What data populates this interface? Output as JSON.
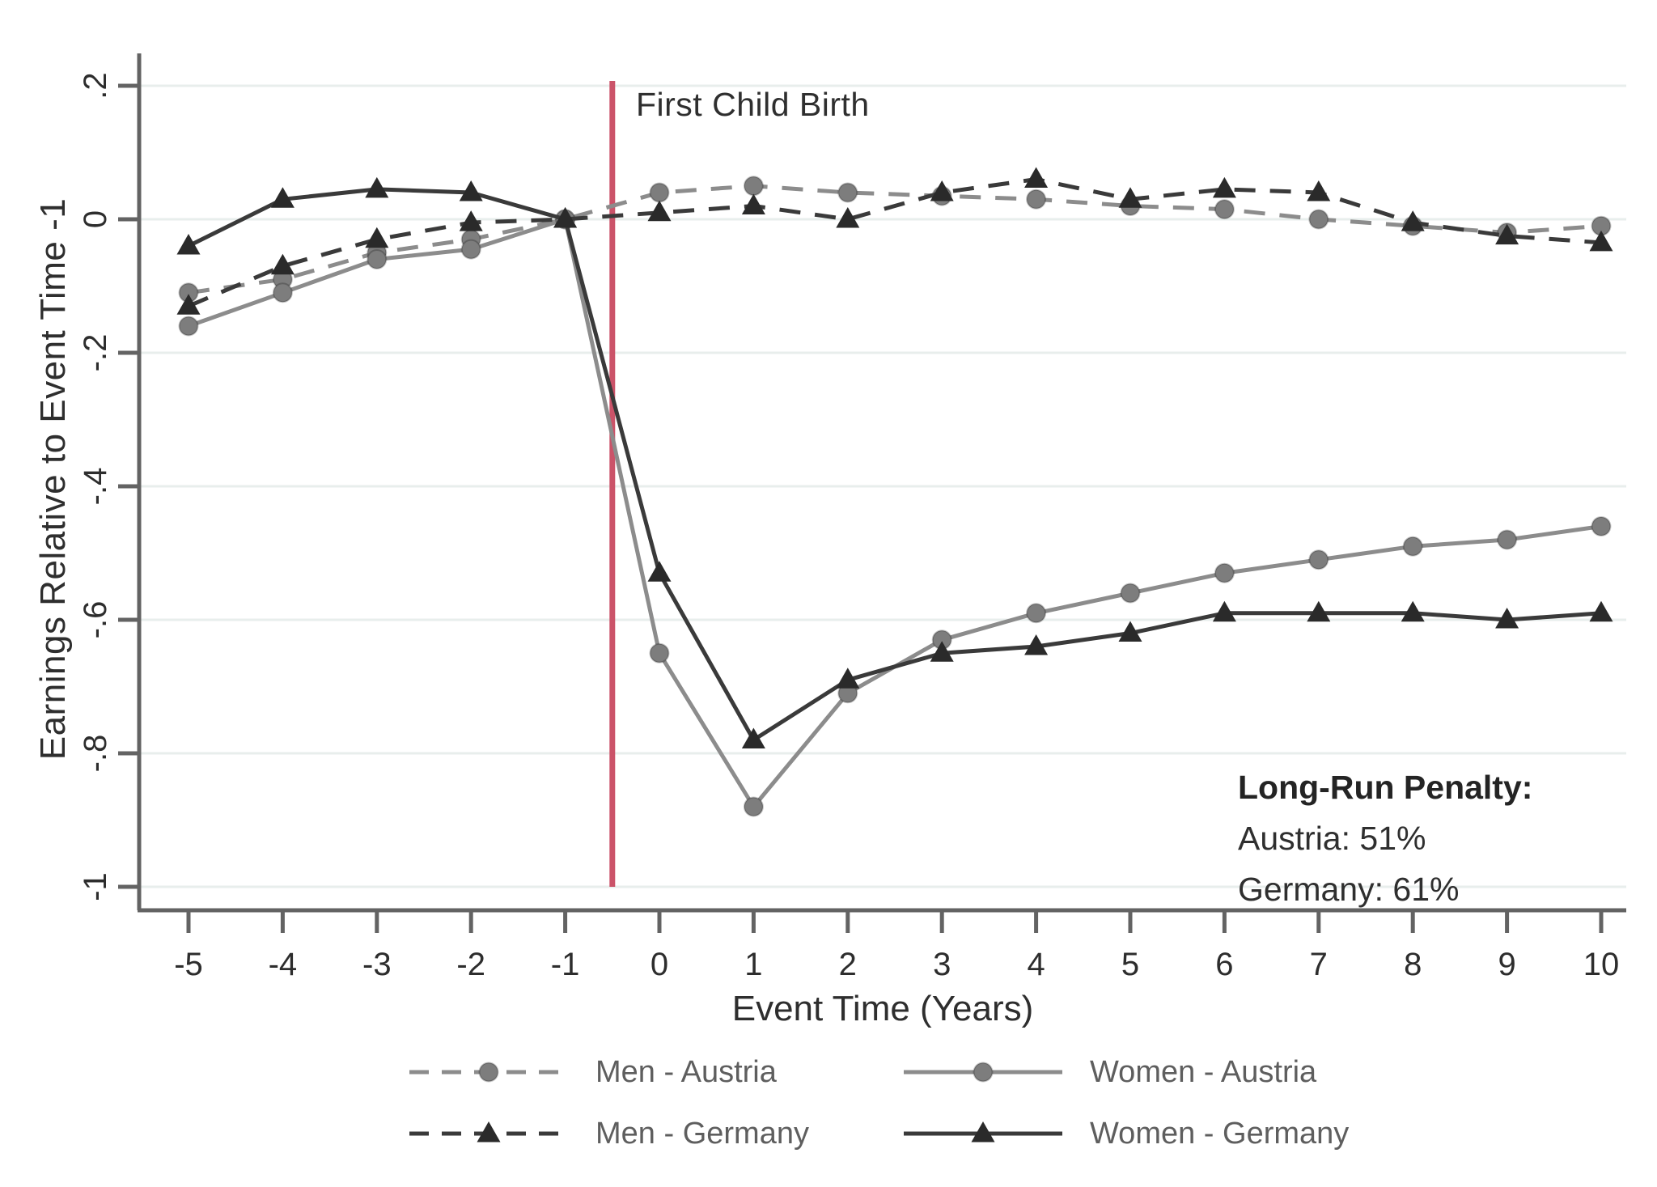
{
  "figure": {
    "event_line_label": "First Child Birth",
    "annotation": {
      "title": "Long-Run Penalty:",
      "line1": "Austria: 51%",
      "line2": "Germany: 61%"
    }
  },
  "chart_data": {
    "type": "line",
    "title": "",
    "xlabel": "Event Time (Years)",
    "ylabel": "Earnings Relative to Event Time -1",
    "x": [
      -5,
      -4,
      -3,
      -2,
      -1,
      0,
      1,
      2,
      3,
      4,
      5,
      6,
      7,
      8,
      9,
      10
    ],
    "x_tick_labels": [
      "-5",
      "-4",
      "-3",
      "-2",
      "-1",
      "0",
      "1",
      "2",
      "3",
      "4",
      "5",
      "6",
      "7",
      "8",
      "9",
      "10"
    ],
    "y_ticks": [
      0.2,
      0,
      -0.2,
      -0.4,
      -0.6,
      -0.8,
      -1
    ],
    "y_tick_labels": [
      ".2",
      "0",
      "-.2",
      "-.4",
      "-.6",
      "-.8",
      "-1"
    ],
    "xlim": [
      -5,
      10
    ],
    "ylim": [
      -1,
      0.2
    ],
    "grid": true,
    "event_line_x": -0.5,
    "series": [
      {
        "name": "Men - Austria",
        "country": "Austria",
        "group": "Men",
        "style": "dashed",
        "marker": "circle",
        "color": "#8c8c8c",
        "marker_color": "#7d7d7d",
        "values": [
          -0.11,
          -0.09,
          -0.05,
          -0.03,
          0,
          0.04,
          0.05,
          0.04,
          0.035,
          0.03,
          0.02,
          0.015,
          0,
          -0.01,
          -0.02,
          -0.01
        ]
      },
      {
        "name": "Women - Austria",
        "country": "Austria",
        "group": "Women",
        "style": "solid",
        "marker": "circle",
        "color": "#8c8c8c",
        "marker_color": "#7d7d7d",
        "values": [
          -0.16,
          -0.11,
          -0.06,
          -0.045,
          0,
          -0.65,
          -0.88,
          -0.71,
          -0.63,
          -0.59,
          -0.56,
          -0.53,
          -0.51,
          -0.49,
          -0.48,
          -0.46
        ]
      },
      {
        "name": "Men - Germany",
        "country": "Germany",
        "group": "Men",
        "style": "dashed",
        "marker": "triangle",
        "color": "#3a3a3a",
        "marker_color": "#2a2a2a",
        "values": [
          -0.13,
          -0.07,
          -0.03,
          -0.005,
          0,
          0.01,
          0.02,
          0,
          0.04,
          0.06,
          0.03,
          0.045,
          0.04,
          -0.005,
          -0.025,
          -0.035
        ]
      },
      {
        "name": "Women - Germany",
        "country": "Germany",
        "group": "Women",
        "style": "solid",
        "marker": "triangle",
        "color": "#3a3a3a",
        "marker_color": "#2a2a2a",
        "values": [
          -0.04,
          0.03,
          0.045,
          0.04,
          0,
          -0.53,
          -0.78,
          -0.69,
          -0.65,
          -0.64,
          -0.62,
          -0.59,
          -0.59,
          -0.59,
          -0.6,
          -0.59
        ]
      }
    ],
    "legend_position": "bottom",
    "colors": {
      "event_line": "#cb5369",
      "grid": "#e8eeec",
      "axis": "#636363",
      "tick_label": "#2d2d2d",
      "legend_text": "#5e5e5e",
      "background": "#ffffff"
    }
  }
}
